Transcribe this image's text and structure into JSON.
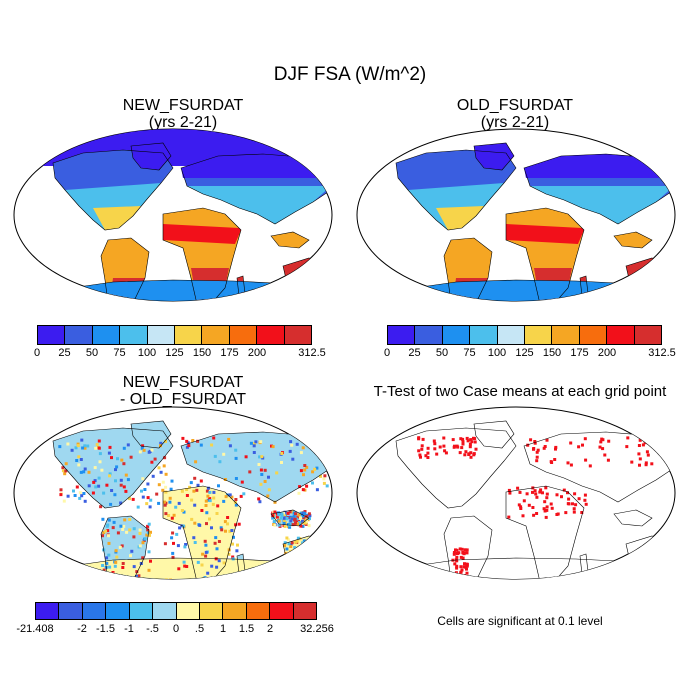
{
  "title": "DJF FSA (W/m^2)",
  "panels": [
    {
      "title_line1": "NEW_FSURDAT",
      "title_line2": "(yrs 2-21)"
    },
    {
      "title_line1": "OLD_FSURDAT",
      "title_line2": "(yrs 2-21)"
    },
    {
      "title_line1": "NEW_FSURDAT",
      "title_line2": "- OLD_FSURDAT"
    },
    {
      "title_line1": "T-Test of two Case means at each grid point",
      "title_line2": ""
    }
  ],
  "colorbar_main": {
    "labels": [
      "0",
      "25",
      "50",
      "75",
      "100",
      "125",
      "150",
      "175",
      "200",
      "312.5"
    ],
    "colors": [
      "#3c1cf0",
      "#3a5ee0",
      "#1e90f0",
      "#4cbfec",
      "#c6e6f5",
      "#f7d44a",
      "#f5a623",
      "#f76d0d",
      "#f2101a",
      "#d62e2e"
    ]
  },
  "colorbar_diff": {
    "labels": [
      "-21.408",
      "-2",
      "-1.5",
      "-1",
      "-.5",
      "0",
      ".5",
      "1",
      "1.5",
      "2",
      "32.256"
    ],
    "colors": [
      "#3c1cf0",
      "#3a5ee0",
      "#2a76e8",
      "#1e90f0",
      "#4cbfec",
      "#9fd8f0",
      "#fff8a8",
      "#f7d44a",
      "#f5a623",
      "#f76d0d",
      "#f2101a",
      "#d62e2e"
    ]
  },
  "significance_note": "Cells are significant at 0.1 level"
}
